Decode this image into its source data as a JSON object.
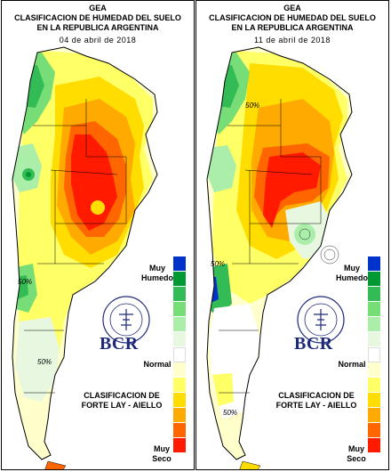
{
  "header_lines": [
    "GEA",
    "CLASIFICACION DE HUMEDAD DEL SUELO",
    "EN LA REPUBLICA ARGENTINA"
  ],
  "panels": [
    {
      "date": "04 de abril de 2018"
    },
    {
      "date": "11 de abril de 2018"
    }
  ],
  "legend": {
    "top_label_1": "Muy",
    "top_label_2": "Humedo",
    "mid_label": "Normal",
    "bottom_label_1": "Muy",
    "bottom_label_2": "Seco",
    "colors": [
      "#0033cc",
      "#009933",
      "#33bb55",
      "#77dd77",
      "#aaeeaa",
      "#e8f8e0",
      "#ffffff",
      "#ffffcc",
      "#ffff66",
      "#ffdd00",
      "#ffaa00",
      "#ff6600",
      "#ff1a00"
    ]
  },
  "source_line_1": "CLASIFICACION DE",
  "source_line_2": "FORTE LAY - AIELLO",
  "logo_text": "BCR",
  "seal_text": "BOLSA DE COMERCIO DE ROSARIO",
  "contour_labels": [
    "50%",
    "50%",
    "50%",
    "50%",
    "50%"
  ]
}
